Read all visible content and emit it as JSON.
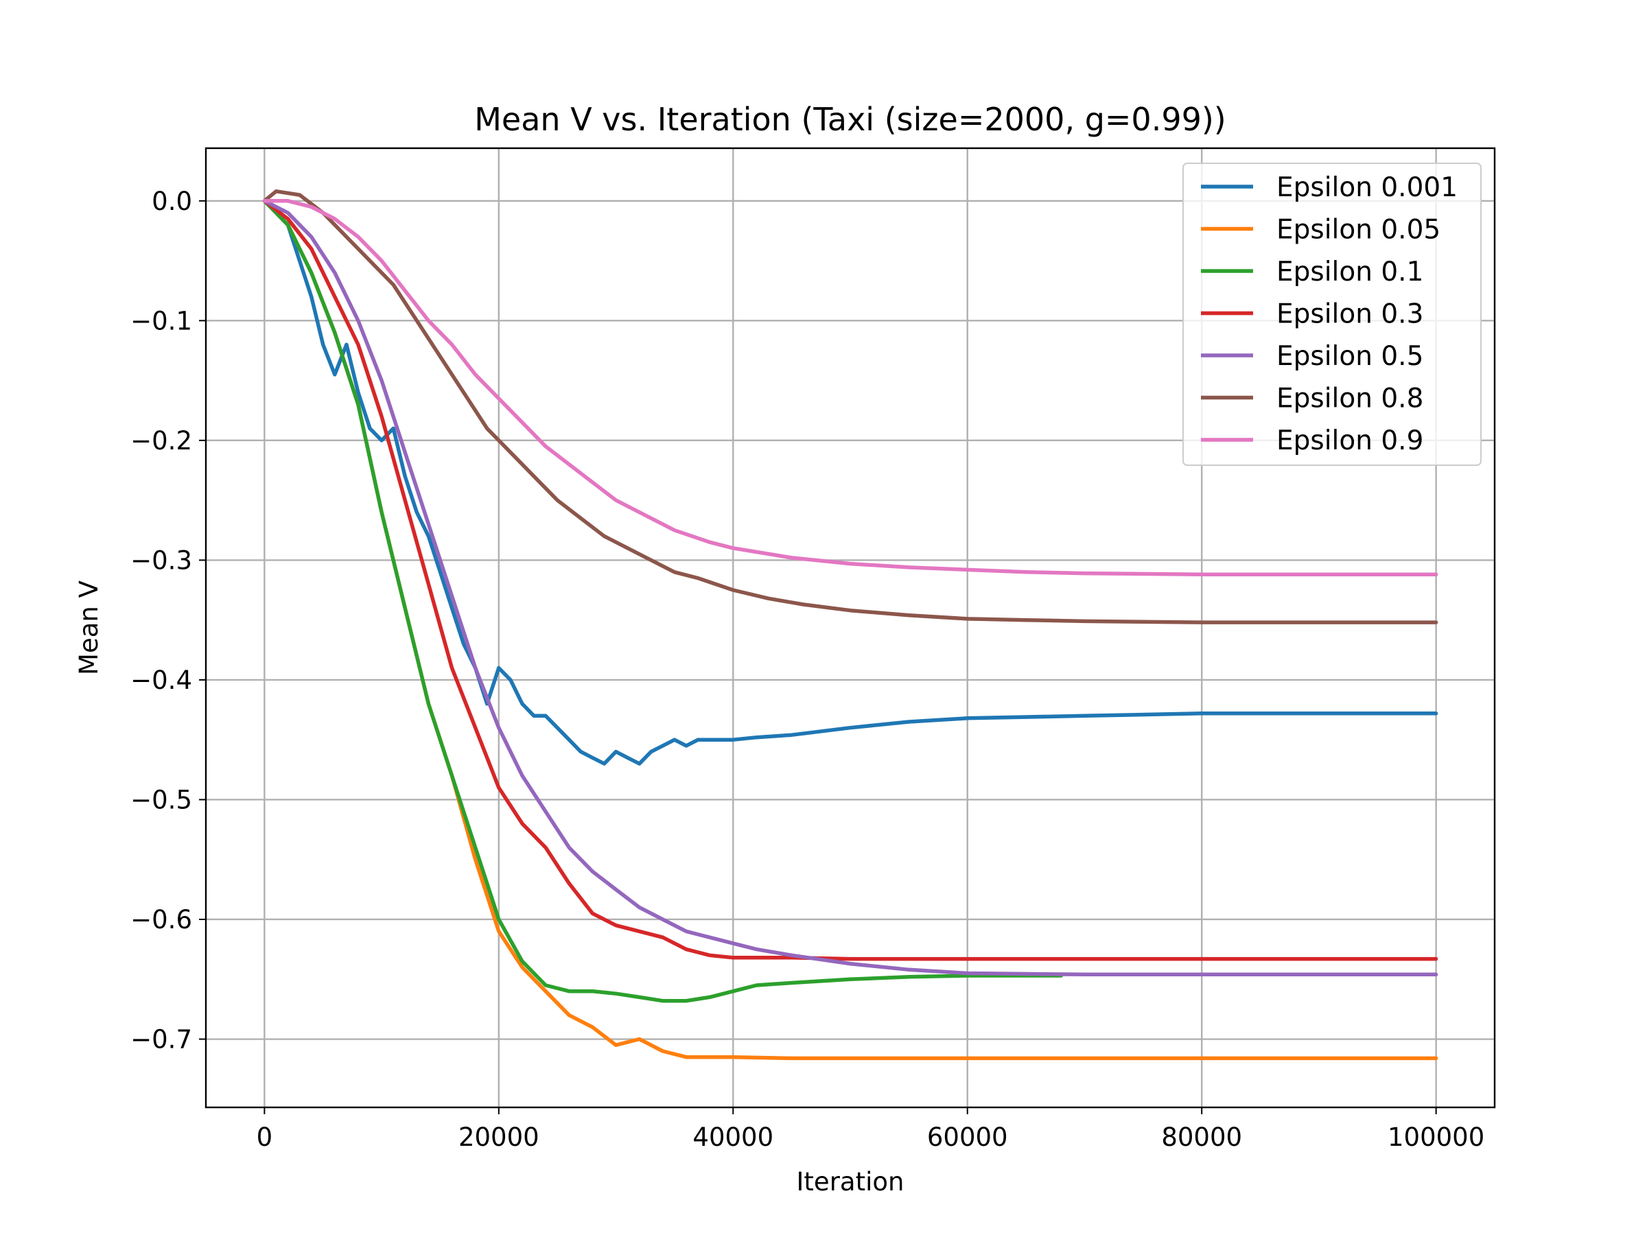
{
  "chart_data": {
    "type": "line",
    "title": "Mean V vs. Iteration (Taxi (size=2000, g=0.99))",
    "xlabel": "Iteration",
    "ylabel": "Mean V",
    "xlim": [
      -5000,
      105000
    ],
    "ylim": [
      -0.757,
      0.044
    ],
    "xticks": [
      0,
      20000,
      40000,
      60000,
      80000,
      100000
    ],
    "xtick_labels": [
      "0",
      "20000",
      "40000",
      "60000",
      "80000",
      "100000"
    ],
    "yticks": [
      0.0,
      -0.1,
      -0.2,
      -0.3,
      -0.4,
      -0.5,
      -0.6,
      -0.7
    ],
    "ytick_labels": [
      "0.0",
      "−0.1",
      "−0.2",
      "−0.3",
      "−0.4",
      "−0.5",
      "−0.6",
      "−0.7"
    ],
    "grid": true,
    "legend_position": "top-right",
    "series": [
      {
        "name": "Epsilon 0.001",
        "color": "#1f77b4",
        "x": [
          0,
          2000,
          3000,
          4000,
          5000,
          6000,
          7000,
          8000,
          9000,
          10000,
          11000,
          12000,
          13000,
          14000,
          15000,
          16000,
          17000,
          18000,
          19000,
          20000,
          21000,
          22000,
          23000,
          24000,
          25000,
          26000,
          27000,
          28000,
          29000,
          30000,
          31000,
          32000,
          33000,
          34000,
          35000,
          36000,
          37000,
          38000,
          39000,
          40000,
          42000,
          45000,
          50000,
          55000,
          60000,
          70000,
          80000,
          90000,
          100000
        ],
        "y": [
          0.0,
          -0.02,
          -0.05,
          -0.08,
          -0.12,
          -0.145,
          -0.12,
          -0.16,
          -0.19,
          -0.2,
          -0.19,
          -0.23,
          -0.26,
          -0.28,
          -0.31,
          -0.34,
          -0.37,
          -0.39,
          -0.42,
          -0.39,
          -0.4,
          -0.42,
          -0.43,
          -0.43,
          -0.44,
          -0.45,
          -0.46,
          -0.465,
          -0.47,
          -0.46,
          -0.465,
          -0.47,
          -0.46,
          -0.455,
          -0.45,
          -0.455,
          -0.45,
          -0.45,
          -0.45,
          -0.45,
          -0.448,
          -0.446,
          -0.44,
          -0.435,
          -0.432,
          -0.43,
          -0.428,
          -0.428,
          -0.428
        ]
      },
      {
        "name": "Epsilon 0.05",
        "color": "#ff7f0e",
        "x": [
          0,
          2000,
          4000,
          6000,
          8000,
          10000,
          12000,
          14000,
          16000,
          18000,
          20000,
          22000,
          24000,
          26000,
          28000,
          30000,
          32000,
          34000,
          36000,
          38000,
          40000,
          45000,
          50000,
          55000,
          60000,
          70000,
          80000,
          90000,
          100000
        ],
        "y": [
          0.0,
          -0.02,
          -0.06,
          -0.11,
          -0.17,
          -0.26,
          -0.34,
          -0.42,
          -0.48,
          -0.55,
          -0.61,
          -0.64,
          -0.66,
          -0.68,
          -0.69,
          -0.705,
          -0.7,
          -0.71,
          -0.715,
          -0.715,
          -0.715,
          -0.716,
          -0.716,
          -0.716,
          -0.716,
          -0.716,
          -0.716,
          -0.716,
          -0.716
        ]
      },
      {
        "name": "Epsilon 0.1",
        "color": "#2ca02c",
        "x": [
          0,
          2000,
          4000,
          6000,
          8000,
          10000,
          12000,
          14000,
          16000,
          18000,
          20000,
          22000,
          24000,
          26000,
          28000,
          30000,
          32000,
          34000,
          36000,
          38000,
          40000,
          42000,
          45000,
          50000,
          55000,
          60000,
          68000
        ],
        "y": [
          0.0,
          -0.02,
          -0.06,
          -0.11,
          -0.17,
          -0.26,
          -0.34,
          -0.42,
          -0.48,
          -0.54,
          -0.6,
          -0.635,
          -0.655,
          -0.66,
          -0.66,
          -0.662,
          -0.665,
          -0.668,
          -0.668,
          -0.665,
          -0.66,
          -0.655,
          -0.653,
          -0.65,
          -0.648,
          -0.647,
          -0.647
        ]
      },
      {
        "name": "Epsilon 0.3",
        "color": "#d62728",
        "x": [
          0,
          2000,
          4000,
          6000,
          8000,
          10000,
          12000,
          14000,
          16000,
          18000,
          20000,
          22000,
          24000,
          26000,
          28000,
          30000,
          32000,
          34000,
          36000,
          38000,
          40000,
          45000,
          50000,
          55000,
          60000,
          70000,
          80000,
          90000,
          100000
        ],
        "y": [
          0.0,
          -0.015,
          -0.04,
          -0.08,
          -0.12,
          -0.18,
          -0.25,
          -0.32,
          -0.39,
          -0.44,
          -0.49,
          -0.52,
          -0.54,
          -0.57,
          -0.595,
          -0.605,
          -0.61,
          -0.615,
          -0.625,
          -0.63,
          -0.632,
          -0.632,
          -0.633,
          -0.633,
          -0.633,
          -0.633,
          -0.633,
          -0.633,
          -0.633
        ]
      },
      {
        "name": "Epsilon 0.5",
        "color": "#9467bd",
        "x": [
          0,
          2000,
          4000,
          6000,
          8000,
          10000,
          12000,
          14000,
          16000,
          18000,
          20000,
          22000,
          24000,
          26000,
          28000,
          30000,
          32000,
          34000,
          36000,
          38000,
          40000,
          42000,
          45000,
          50000,
          55000,
          60000,
          70000,
          80000,
          90000,
          100000
        ],
        "y": [
          0.0,
          -0.01,
          -0.03,
          -0.06,
          -0.1,
          -0.15,
          -0.21,
          -0.27,
          -0.33,
          -0.39,
          -0.44,
          -0.48,
          -0.51,
          -0.54,
          -0.56,
          -0.575,
          -0.59,
          -0.6,
          -0.61,
          -0.615,
          -0.62,
          -0.625,
          -0.63,
          -0.637,
          -0.642,
          -0.645,
          -0.646,
          -0.646,
          -0.646,
          -0.646
        ]
      },
      {
        "name": "Epsilon 0.8",
        "color": "#8c564b",
        "x": [
          0,
          1000,
          3000,
          5000,
          7000,
          9000,
          11000,
          13000,
          15000,
          17000,
          19000,
          21000,
          23000,
          25000,
          27000,
          29000,
          31000,
          33000,
          35000,
          37000,
          40000,
          43000,
          46000,
          50000,
          55000,
          60000,
          65000,
          70000,
          80000,
          90000,
          100000
        ],
        "y": [
          0.0,
          0.008,
          0.005,
          -0.01,
          -0.03,
          -0.05,
          -0.07,
          -0.1,
          -0.13,
          -0.16,
          -0.19,
          -0.21,
          -0.23,
          -0.25,
          -0.265,
          -0.28,
          -0.29,
          -0.3,
          -0.31,
          -0.315,
          -0.325,
          -0.332,
          -0.337,
          -0.342,
          -0.346,
          -0.349,
          -0.35,
          -0.351,
          -0.352,
          -0.352,
          -0.352
        ]
      },
      {
        "name": "Epsilon 0.9",
        "color": "#e377c2",
        "x": [
          0,
          2000,
          4000,
          6000,
          8000,
          10000,
          12000,
          14000,
          16000,
          18000,
          20000,
          22000,
          24000,
          26000,
          28000,
          30000,
          32000,
          35000,
          38000,
          40000,
          45000,
          50000,
          55000,
          60000,
          65000,
          70000,
          80000,
          90000,
          100000
        ],
        "y": [
          0.0,
          0.0,
          -0.005,
          -0.015,
          -0.03,
          -0.05,
          -0.075,
          -0.1,
          -0.12,
          -0.145,
          -0.165,
          -0.185,
          -0.205,
          -0.22,
          -0.235,
          -0.25,
          -0.26,
          -0.275,
          -0.285,
          -0.29,
          -0.298,
          -0.303,
          -0.306,
          -0.308,
          -0.31,
          -0.311,
          -0.312,
          -0.312,
          -0.312
        ]
      }
    ]
  }
}
